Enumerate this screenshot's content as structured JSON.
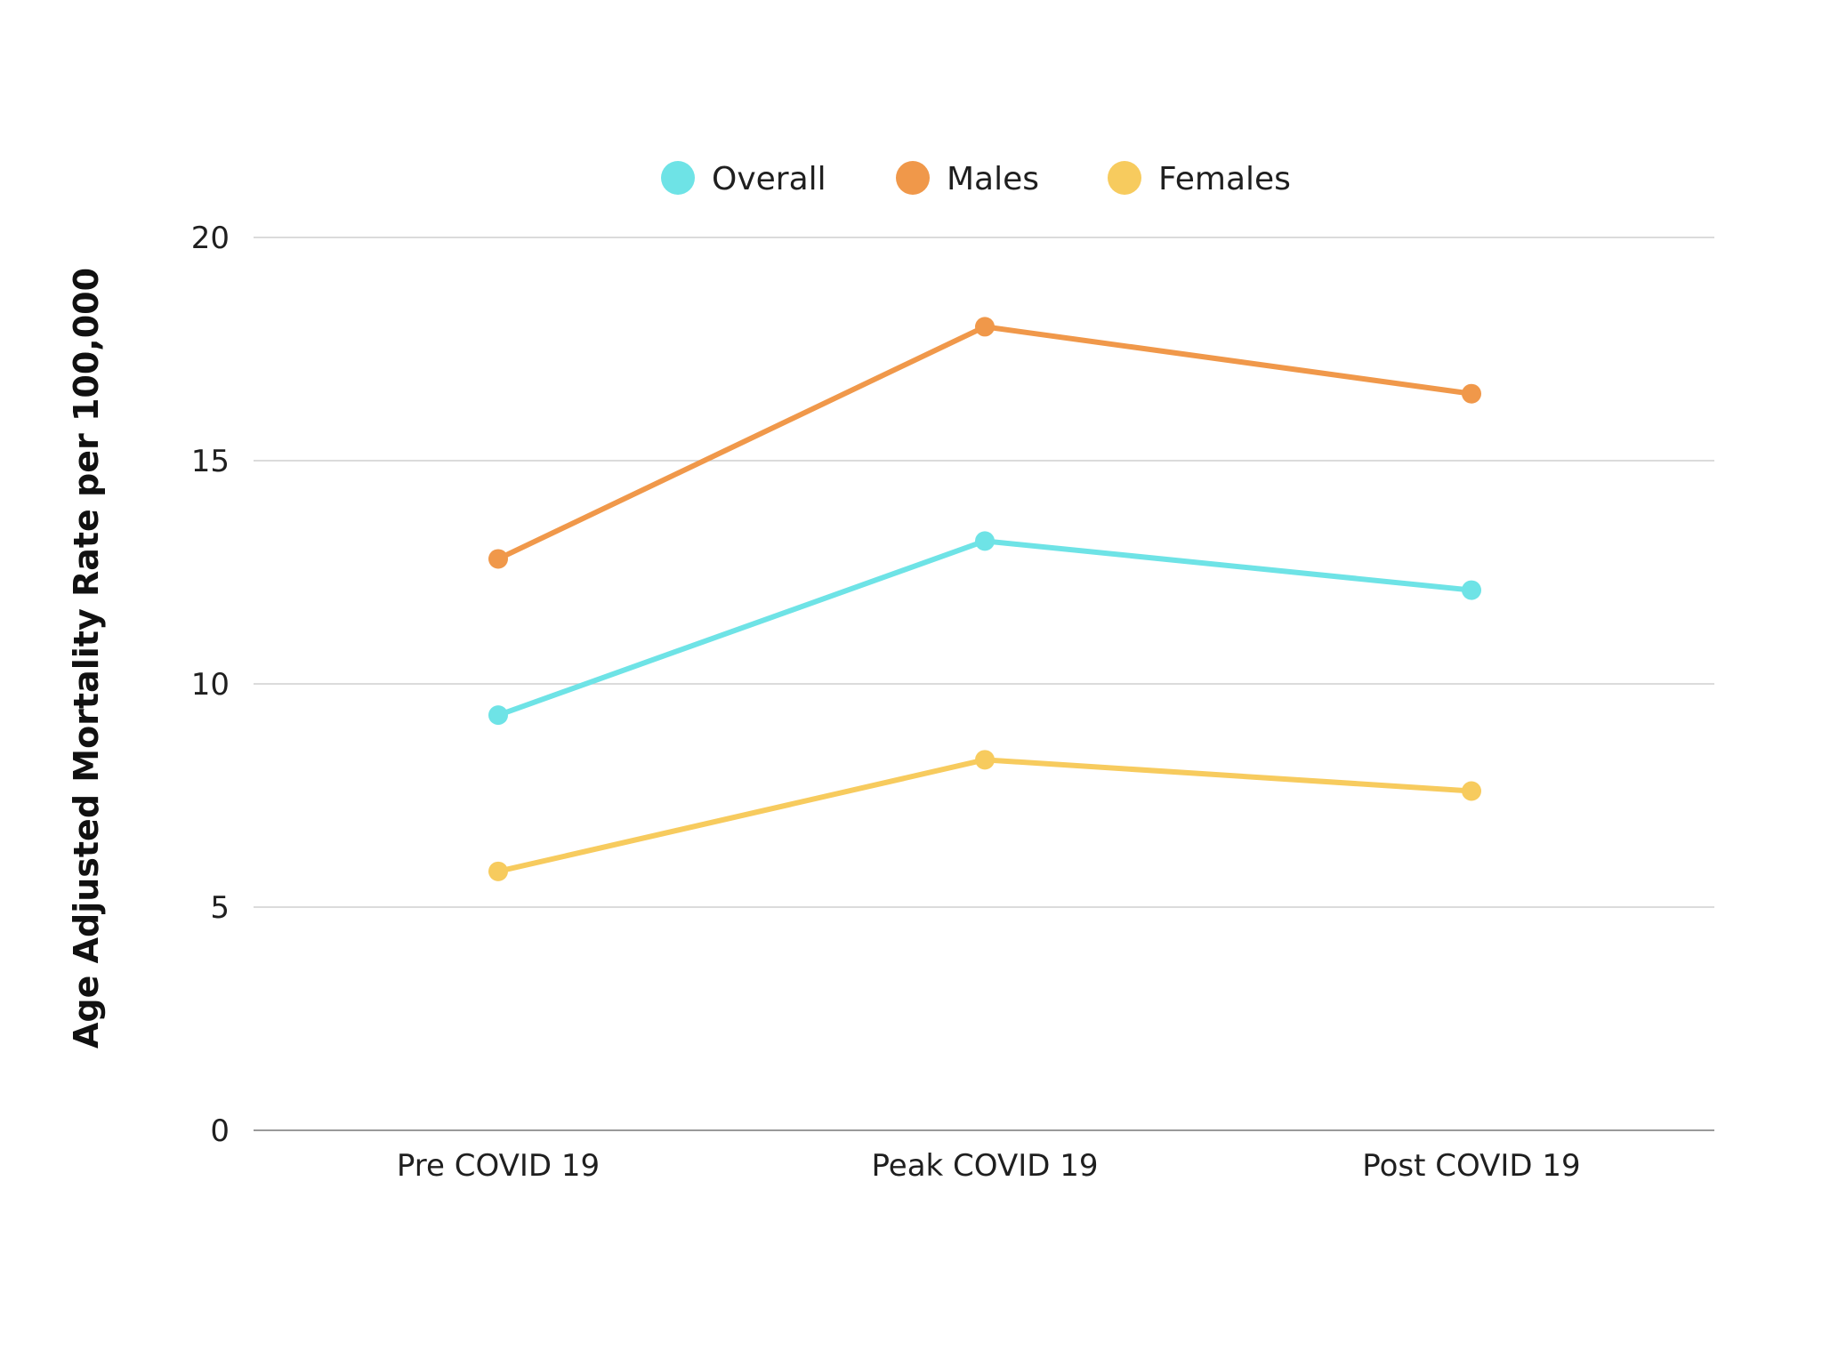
{
  "chart_data": {
    "type": "line",
    "title": "",
    "xlabel": "",
    "ylabel": "Age Adjusted Mortality Rate per 100,000",
    "categories": [
      "Pre COVID 19",
      "Peak COVID 19",
      "Post COVID 19"
    ],
    "ylim": [
      0,
      20
    ],
    "yticks": [
      0,
      5,
      10,
      15,
      20
    ],
    "grid": true,
    "legend_position": "top-center",
    "series": [
      {
        "name": "Overall",
        "values": [
          9.3,
          13.2,
          12.1
        ],
        "color": "#6ee3e6"
      },
      {
        "name": "Males",
        "values": [
          12.8,
          18.0,
          16.5
        ],
        "color": "#f0984a"
      },
      {
        "name": "Females",
        "values": [
          5.8,
          8.3,
          7.6
        ],
        "color": "#f7cb5e"
      }
    ]
  }
}
